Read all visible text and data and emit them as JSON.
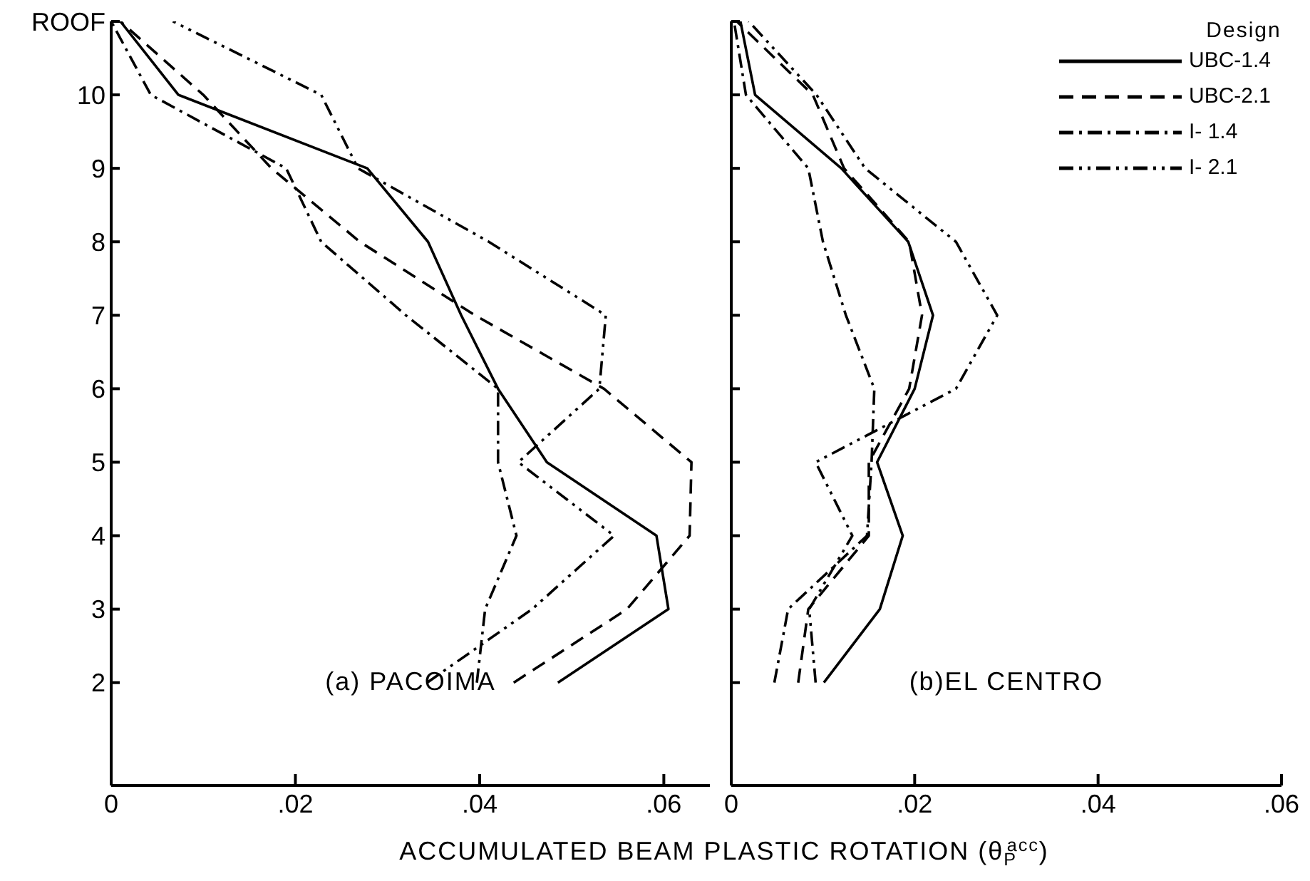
{
  "chart_data": [
    {
      "type": "line",
      "annotations": [
        "(a) PACOIMA"
      ],
      "xlabel": "ACCUMULATED BEAM PLASTIC ROTATION (θ$_{P}$$^{acc}$)",
      "xlim": [
        0,
        0.065
      ],
      "xticks": [
        0,
        {
          "value": 0.02,
          "label": ".02"
        },
        {
          "value": 0.04,
          "label": ".04"
        },
        {
          "value": 0.06,
          "label": ".06"
        }
      ],
      "ylim": [
        0.6,
        11
      ],
      "yticks": [
        2,
        3,
        4,
        5,
        6,
        7,
        8,
        9,
        10,
        {
          "value": 11,
          "label": "ROOF"
        }
      ],
      "grid": false,
      "legend": false,
      "marker": "none",
      "series": [
        {
          "color": "#000000",
          "line_style": "solid",
          "x": [
            0.0485,
            0.0605,
            0.0592,
            0.0473,
            0.042,
            0.038,
            0.0344,
            0.0278,
            0.0073,
            0.001
          ],
          "values": [
            2,
            3,
            4,
            5,
            6,
            7,
            8,
            9,
            10,
            11
          ]
        },
        {
          "color": "#000000",
          "line_style": "dashed",
          "x": [
            0.0437,
            0.056,
            0.0628,
            0.063,
            0.0535,
            0.0395,
            0.027,
            0.0174,
            0.01,
            0.001
          ],
          "values": [
            2,
            3,
            4,
            5,
            6,
            7,
            8,
            9,
            10,
            11
          ]
        },
        {
          "color": "#000000",
          "line_style": "dashdot",
          "x": [
            0.0397,
            0.0406,
            0.044,
            0.042,
            0.042,
            0.032,
            0.0228,
            0.019,
            0.0043,
            0
          ],
          "values": [
            2,
            3,
            4,
            5,
            6,
            7,
            8,
            9,
            10,
            11
          ]
        },
        {
          "color": "#000000",
          "line_style": "dashdotdot",
          "x": [
            0.0343,
            0.0457,
            0.0546,
            0.0442,
            0.053,
            0.0537,
            0.041,
            0.0268,
            0.0228,
            0.0067
          ],
          "values": [
            2,
            3,
            4,
            5,
            6,
            7,
            8,
            9,
            10,
            11
          ]
        }
      ]
    },
    {
      "type": "line",
      "annotations": [
        "(b)EL CENTRO"
      ],
      "legend_title": "Design",
      "tick_labels": "x",
      "xlim": [
        0,
        0.06
      ],
      "xticks": [
        0,
        {
          "value": 0.02,
          "label": ".02"
        },
        {
          "value": 0.04,
          "label": ".04"
        },
        {
          "value": 0.06,
          "label": ".06"
        }
      ],
      "ylim": [
        0.6,
        11
      ],
      "yticks": [
        {
          "value": 2,
          "label": null
        },
        {
          "value": 3,
          "label": null
        },
        {
          "value": 4,
          "label": null
        },
        {
          "value": 5,
          "label": null
        },
        {
          "value": 6,
          "label": null
        },
        {
          "value": 7,
          "label": null
        },
        {
          "value": 8,
          "label": null
        },
        {
          "value": 9,
          "label": null
        },
        {
          "value": 10,
          "label": null
        },
        {
          "value": 11,
          "label": null
        }
      ],
      "grid": false,
      "legend": "top right",
      "marker": "none",
      "series": [
        {
          "name": "UBC-1.4",
          "color": "#000000",
          "line_style": "solid",
          "x": [
            0.0101,
            0.0162,
            0.0187,
            0.0159,
            0.02,
            0.022,
            0.0193,
            0.012,
            0.0026,
            0.001
          ],
          "values": [
            2,
            3,
            4,
            5,
            6,
            7,
            8,
            9,
            10,
            11
          ]
        },
        {
          "name": "UBC-2.1",
          "color": "#000000",
          "line_style": "dashed",
          "x": [
            0.0073,
            0.0084,
            0.015,
            0.015,
            0.0194,
            0.0208,
            0.0194,
            0.0123,
            0.0089,
            0.0006
          ],
          "values": [
            2,
            3,
            4,
            5,
            6,
            7,
            8,
            9,
            10,
            11
          ]
        },
        {
          "name": "I- 1.4",
          "color": "#000000",
          "line_style": "dashdot",
          "x": [
            0.0047,
            0.0062,
            0.0148,
            0.0153,
            0.0156,
            0.0125,
            0.01,
            0.0084,
            0.0016,
            0.0003
          ],
          "values": [
            2,
            3,
            4,
            5,
            6,
            7,
            8,
            9,
            10,
            11
          ]
        },
        {
          "name": "I- 2.1",
          "color": "#000000",
          "line_style": "dashdotdot",
          "x": [
            0.0092,
            0.0085,
            0.0132,
            0.0092,
            0.0245,
            0.029,
            0.0245,
            0.0146,
            0.0093,
            0.0019
          ],
          "values": [
            2,
            3,
            4,
            5,
            6,
            7,
            8,
            9,
            10,
            11
          ]
        }
      ]
    }
  ]
}
